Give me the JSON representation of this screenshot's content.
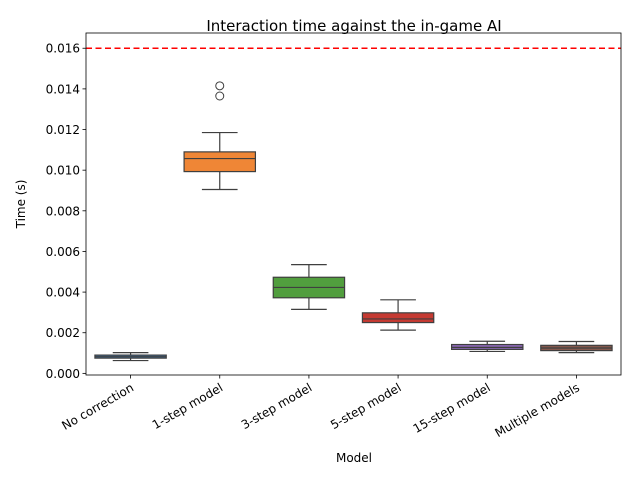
{
  "chart_data": {
    "type": "box",
    "title": "Interaction time against the in-game AI",
    "xlabel": "Model",
    "ylabel": "Time (s)",
    "ylim": [
      -8e-05,
      0.01675
    ],
    "yticks": [
      "0.000",
      "0.002",
      "0.004",
      "0.006",
      "0.008",
      "0.010",
      "0.012",
      "0.014",
      "0.016"
    ],
    "ytick_values": [
      0.0,
      0.002,
      0.004,
      0.006,
      0.008,
      0.01,
      0.012,
      0.014,
      0.016
    ],
    "xtick_rotation_deg": 30,
    "grid": false,
    "categories": [
      "No correction",
      "1-step model",
      "3-step model",
      "5-step model",
      "15-step model",
      "Multiple models"
    ],
    "boxes": [
      {
        "whisker_low": 0.00063,
        "q1": 0.00075,
        "median": 0.00082,
        "q3": 0.0009,
        "whisker_high": 0.00102,
        "outliers": [],
        "color": "#3b75af"
      },
      {
        "whisker_low": 0.00905,
        "q1": 0.00993,
        "median": 0.01057,
        "q3": 0.0109,
        "whisker_high": 0.01185,
        "outliers": [
          0.01365,
          0.01415
        ],
        "color": "#ef8636"
      },
      {
        "whisker_low": 0.00315,
        "q1": 0.00372,
        "median": 0.00423,
        "q3": 0.00473,
        "whisker_high": 0.00535,
        "outliers": [],
        "color": "#519e3e"
      },
      {
        "whisker_low": 0.00213,
        "q1": 0.0025,
        "median": 0.00268,
        "q3": 0.00298,
        "whisker_high": 0.00362,
        "outliers": [],
        "color": "#c53a32"
      },
      {
        "whisker_low": 0.00108,
        "q1": 0.00118,
        "median": 0.00128,
        "q3": 0.00142,
        "whisker_high": 0.00158,
        "outliers": [],
        "color": "#8d69b8"
      },
      {
        "whisker_low": 0.00102,
        "q1": 0.00112,
        "median": 0.00125,
        "q3": 0.00138,
        "whisker_high": 0.00157,
        "outliers": [],
        "color": "#84584d"
      }
    ],
    "reference_line": {
      "value": 0.016,
      "style": "dashed",
      "color": "#ff0000"
    }
  }
}
